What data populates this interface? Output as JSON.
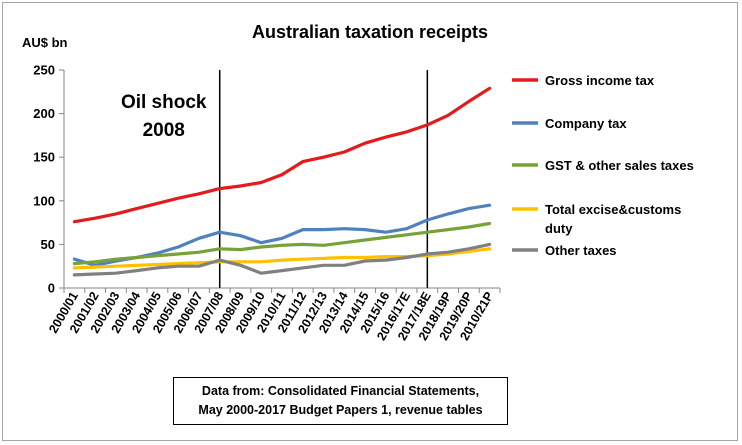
{
  "chart_data": {
    "type": "line",
    "title": "Australian taxation receipts",
    "unit_label": "AU$ bn",
    "ylim": [
      0,
      250
    ],
    "yticks": [
      "0",
      "50",
      "100",
      "150",
      "200",
      "250"
    ],
    "categories": [
      "2000/01",
      "2001/02",
      "2002/03",
      "2003/04",
      "2004/05",
      "2005/06",
      "2006/07",
      "2007/08",
      "2008/09",
      "2009/10",
      "2010/11",
      "2011/12",
      "2012/13",
      "2013/14",
      "2014/15",
      "2015/16",
      "2016/17E",
      "2017/18E",
      "2018/19P",
      "2019/20P",
      "2010/21P"
    ],
    "grid": false,
    "legend_position": "right",
    "series": [
      {
        "name": "Gross income tax",
        "color": "#e41a1c",
        "values": [
          76,
          80,
          85,
          91,
          97,
          103,
          108,
          114,
          117,
          121,
          130,
          145,
          150,
          156,
          166,
          173,
          179,
          187,
          198,
          214,
          229
        ]
      },
      {
        "name": "Company tax",
        "color": "#4f81bd",
        "values": [
          33,
          26,
          31,
          35,
          40,
          47,
          57,
          64,
          60,
          52,
          57,
          67,
          67,
          68,
          67,
          64,
          68,
          78,
          85,
          91,
          95
        ]
      },
      {
        "name": "GST & other sales taxes",
        "color": "#77a13a",
        "values": [
          28,
          30,
          33,
          35,
          37,
          39,
          41,
          45,
          44,
          47,
          49,
          50,
          49,
          52,
          55,
          58,
          61,
          64,
          67,
          70,
          74
        ]
      },
      {
        "name": "Total excise&customs duty",
        "color": "#ffc000",
        "values": [
          23,
          24,
          25,
          26,
          27,
          28,
          29,
          30,
          30,
          30,
          32,
          33,
          34,
          35,
          35,
          36,
          36,
          37,
          39,
          42,
          45
        ]
      },
      {
        "name": "Other taxes",
        "color": "#808080",
        "values": [
          15,
          16,
          17,
          20,
          23,
          25,
          25,
          32,
          26,
          17,
          20,
          23,
          26,
          26,
          31,
          32,
          35,
          39,
          41,
          45,
          50
        ]
      }
    ],
    "legend_labels": [
      [
        "Gross income tax"
      ],
      [
        "Company tax"
      ],
      [
        "GST & other sales taxes"
      ],
      [
        "Total excise&customs",
        "duty"
      ],
      [
        "Other taxes"
      ]
    ],
    "vlines": [
      {
        "category": "2007/08"
      },
      {
        "category": "2017/18E"
      }
    ],
    "annotation": [
      "Oil shock",
      "2008"
    ],
    "source": [
      "Data from: Consolidated Financial Statements,",
      "May 2000-2017 Budget Papers 1, revenue tables"
    ]
  }
}
